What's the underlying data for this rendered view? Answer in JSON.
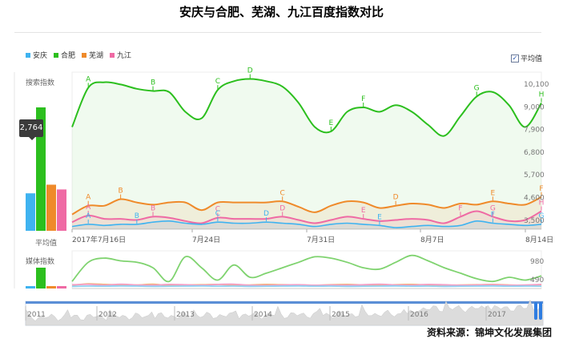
{
  "title": "安庆与合肥、芜湖、九江百度指数对比",
  "source": "资料来源：锦坤文化发展集团",
  "legend": [
    {
      "label": "安庆",
      "color": "#3fb3f0"
    },
    {
      "label": "合肥",
      "color": "#2cbf1e"
    },
    {
      "label": "芜湖",
      "color": "#ef8a2a"
    },
    {
      "label": "九江",
      "color": "#ef6aa4"
    }
  ],
  "avg_toggle": {
    "checked_glyph": "✓",
    "label": "平均值"
  },
  "labels": {
    "search_index": "搜索指数",
    "media_index": "媒体指数",
    "average": "平均值",
    "tooltip_value": "2,764"
  },
  "main_chart": {
    "y_ticks": [
      "10,100",
      "9,000",
      "7,900",
      "6,800",
      "5,700",
      "4,600",
      "3,500"
    ],
    "x_ticks": [
      "2017年7月16日",
      "7月24日",
      "7月31日",
      "8月7日",
      "8月14日"
    ]
  },
  "media_chart": {
    "y_ticks": [
      "980",
      "490"
    ]
  },
  "timeline": {
    "years": [
      "2011",
      "2012",
      "2013",
      "2014",
      "2015",
      "2016",
      "2017"
    ]
  },
  "chart_data": {
    "type": "line",
    "y_range": [
      3500,
      10100
    ],
    "x_range": [
      0,
      29
    ],
    "series": [
      {
        "name": "合肥",
        "color": "#2cbf1e",
        "x": [
          0,
          1,
          2,
          3,
          4,
          5,
          6,
          7,
          8,
          9,
          10,
          11,
          12,
          13,
          14,
          15,
          16,
          17,
          18,
          19,
          20,
          21,
          22,
          23,
          24,
          25,
          26,
          27,
          28,
          29
        ],
        "values": [
          8100,
          9900,
          10150,
          10050,
          9850,
          9750,
          9700,
          8800,
          8500,
          9800,
          10200,
          10300,
          10200,
          9950,
          9200,
          8100,
          7900,
          8800,
          9000,
          8800,
          9100,
          8800,
          8200,
          7700,
          8600,
          9500,
          9700,
          9100,
          8100,
          9200
        ]
      },
      {
        "name": "芜湖",
        "color": "#ef8a2a",
        "x": [
          0,
          1,
          2,
          3,
          4,
          5,
          6,
          7,
          8,
          9,
          10,
          11,
          12,
          13,
          14,
          15,
          16,
          17,
          18,
          19,
          20,
          21,
          22,
          23,
          24,
          25,
          26,
          27,
          28,
          29
        ],
        "values": [
          4100,
          4500,
          4500,
          4800,
          4650,
          4550,
          4650,
          4650,
          4300,
          4650,
          4650,
          4650,
          4650,
          4700,
          4450,
          4200,
          4500,
          4700,
          4650,
          4400,
          4500,
          4600,
          4550,
          4400,
          4600,
          4550,
          4700,
          4600,
          4550,
          4900
        ]
      },
      {
        "name": "九江",
        "color": "#ef6aa4",
        "x": [
          0,
          1,
          2,
          3,
          4,
          5,
          6,
          7,
          8,
          9,
          10,
          11,
          12,
          13,
          14,
          15,
          16,
          17,
          18,
          19,
          20,
          21,
          22,
          23,
          24,
          25,
          26,
          27,
          28,
          29
        ],
        "values": [
          3750,
          4050,
          3900,
          3900,
          3850,
          4000,
          3950,
          3800,
          3700,
          3950,
          3900,
          3900,
          3900,
          4000,
          3850,
          3700,
          3850,
          4000,
          3900,
          3800,
          3850,
          3900,
          3850,
          3700,
          4000,
          4250,
          4000,
          3800,
          3850,
          4250
        ]
      },
      {
        "name": "安庆",
        "color": "#3fb3f0",
        "x": [
          0,
          1,
          2,
          3,
          4,
          5,
          6,
          7,
          8,
          9,
          10,
          11,
          12,
          13,
          14,
          15,
          16,
          17,
          18,
          19,
          20,
          21,
          22,
          23,
          24,
          25,
          26,
          27,
          28,
          29
        ],
        "values": [
          3550,
          3650,
          3600,
          3650,
          3650,
          3750,
          3800,
          3700,
          3650,
          3750,
          3700,
          3700,
          3750,
          3700,
          3650,
          3550,
          3650,
          3700,
          3650,
          3600,
          3500,
          3550,
          3600,
          3550,
          3600,
          3800,
          3700,
          3650,
          3600,
          3650
        ]
      }
    ],
    "bar_averages": [
      {
        "name": "安庆",
        "value": 2764
      },
      {
        "name": "合肥",
        "value": 9100
      },
      {
        "name": "芜湖",
        "value": 3400
      },
      {
        "name": "九江",
        "value": 3050
      }
    ],
    "annotations": {
      "合肥": [
        [
          "A",
          1
        ],
        [
          "B",
          5
        ],
        [
          "C",
          9
        ],
        [
          "D",
          11
        ],
        [
          "E",
          16
        ],
        [
          "F",
          18
        ],
        [
          "G",
          25
        ],
        [
          "H",
          29
        ]
      ],
      "芜湖": [
        [
          "A",
          1
        ],
        [
          "B",
          3
        ],
        [
          "C",
          13
        ],
        [
          "D",
          20
        ],
        [
          "E",
          26
        ],
        [
          "F",
          29
        ]
      ],
      "九江": [
        [
          "A",
          1
        ],
        [
          "B",
          5
        ],
        [
          "C",
          9
        ],
        [
          "D",
          13
        ],
        [
          "E",
          18
        ],
        [
          "F",
          24
        ],
        [
          "G",
          26
        ],
        [
          "H",
          29
        ]
      ],
      "安庆": [
        [
          "A",
          1
        ],
        [
          "B",
          4
        ],
        [
          "C",
          9
        ],
        [
          "D",
          12
        ],
        [
          "E",
          19
        ],
        [
          "F",
          26
        ],
        [
          "G",
          29
        ]
      ]
    }
  },
  "media_data": {
    "y_range": [
      0,
      1200
    ],
    "series": [
      {
        "name": "合肥",
        "color": "#7fd36f",
        "values": [
          200,
          900,
          1050,
          950,
          900,
          700,
          200,
          1100,
          700,
          250,
          800,
          350,
          500,
          700,
          900,
          1100,
          1050,
          900,
          700,
          650,
          900,
          1150,
          950,
          700,
          500,
          300,
          200,
          350,
          250,
          400
        ]
      },
      {
        "name": "芜湖",
        "color": "#f2b27a",
        "values": [
          60,
          110,
          90,
          80,
          70,
          100,
          50,
          70,
          80,
          90,
          60,
          70,
          90,
          80,
          70,
          60,
          80,
          90,
          70,
          60,
          80,
          90,
          70,
          60,
          70,
          80,
          90,
          70,
          60,
          80
        ]
      },
      {
        "name": "九江",
        "color": "#f3a0c6",
        "values": [
          80,
          90,
          60,
          100,
          70,
          60,
          90,
          80,
          60,
          90,
          100,
          60,
          50,
          70,
          80,
          60,
          70,
          60,
          80,
          100,
          70,
          60,
          90,
          80,
          60,
          70,
          80,
          60,
          70,
          90
        ]
      },
      {
        "name": "安庆",
        "color": "#8fd0f2",
        "values": [
          20,
          30,
          25,
          35,
          30,
          20,
          25,
          30,
          35,
          25,
          30,
          20,
          25,
          30,
          35,
          25,
          30,
          20,
          25,
          30,
          35,
          25,
          30,
          20,
          25,
          30,
          35,
          25,
          30,
          25
        ]
      }
    ]
  }
}
